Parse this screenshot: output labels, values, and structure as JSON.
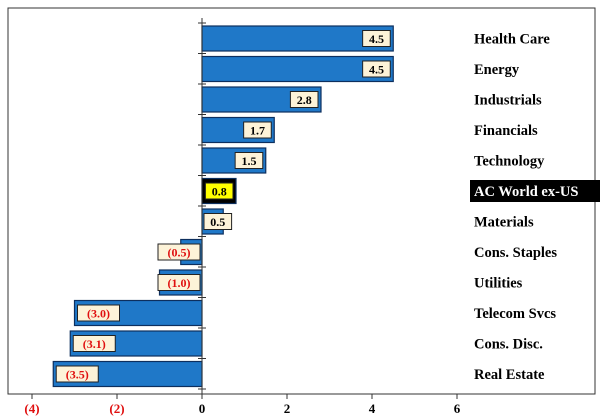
{
  "chart_data": {
    "type": "bar",
    "orientation": "horizontal",
    "categories": [
      "Health Care",
      "Energy",
      "Industrials",
      "Financials",
      "Technology",
      "AC World ex-US",
      "Materials",
      "Cons. Staples",
      "Utilities",
      "Telecom Svcs",
      "Cons. Disc.",
      "Real Estate"
    ],
    "values": [
      4.5,
      4.5,
      2.8,
      1.7,
      1.5,
      0.8,
      0.5,
      -0.5,
      -1.0,
      -3.0,
      -3.1,
      -3.5
    ],
    "value_labels": [
      "4.5",
      "4.5",
      "2.8",
      "1.7",
      "1.5",
      "0.8",
      "0.5",
      "(0.5)",
      "(1.0)",
      "(3.0)",
      "(3.1)",
      "(3.5)"
    ],
    "highlight_category": "AC World ex-US",
    "xlim": [
      -4,
      6
    ],
    "xticks": [
      -4,
      -2,
      0,
      2,
      4,
      6
    ],
    "xtick_labels": [
      "(4)",
      "(2)",
      "0",
      "2",
      "4",
      "6"
    ],
    "grid": false,
    "colors": {
      "bar": "#1f78c8",
      "bar_border": "#0d2f5e",
      "label_bg": "#fdf3d8",
      "highlight_bg": "#000000",
      "highlight_label_bg": "#ffff00",
      "negative_text": "#e01010",
      "text": "#000000",
      "frame": "#333333"
    }
  }
}
